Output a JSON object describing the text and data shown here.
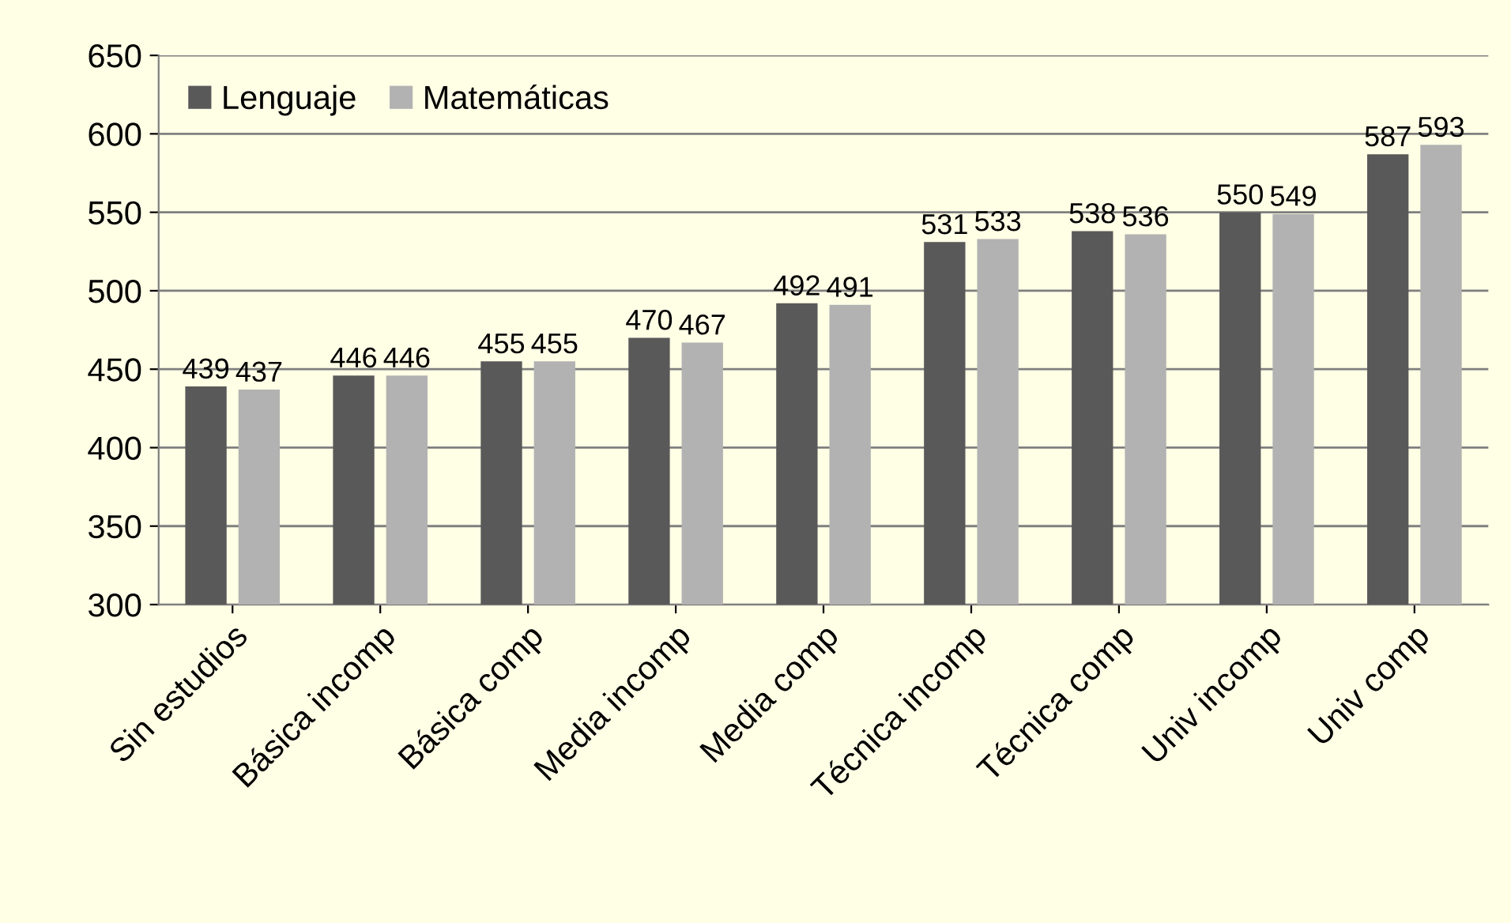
{
  "chart_data": {
    "type": "bar",
    "categories": [
      "Sin estudios",
      "Básica incomp",
      "Básica comp",
      "Media incomp",
      "Media comp",
      "Técnica incomp",
      "Técnica comp",
      "Univ incomp",
      "Univ comp"
    ],
    "series": [
      {
        "name": "Lenguaje",
        "color": "#595959",
        "values": [
          439,
          446,
          455,
          470,
          492,
          531,
          538,
          550,
          587
        ]
      },
      {
        "name": "Matemáticas",
        "color": "#b2b2b2",
        "values": [
          437,
          446,
          455,
          467,
          491,
          533,
          536,
          549,
          593
        ]
      }
    ],
    "ylim": [
      300,
      650
    ],
    "yticks": [
      300,
      350,
      400,
      450,
      500,
      550,
      600,
      650
    ],
    "grid": "y",
    "legend": "top left",
    "data_labels": true
  }
}
